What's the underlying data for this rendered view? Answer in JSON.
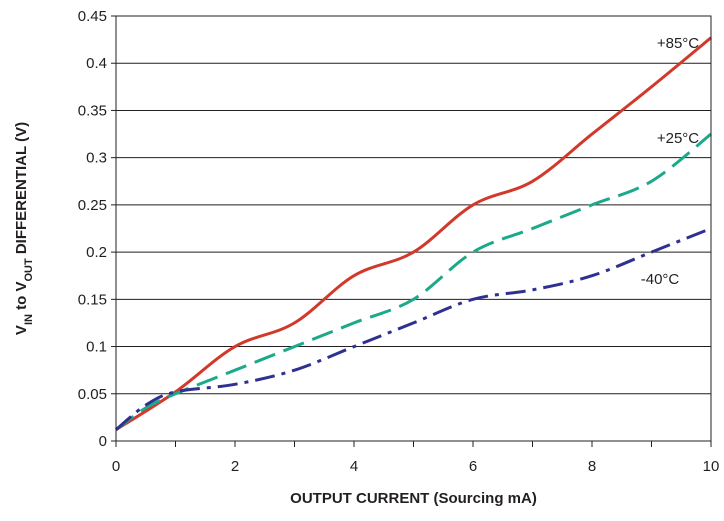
{
  "chart_data": {
    "type": "line",
    "xlabel": "OUTPUT CURRENT (Sourcing mA)",
    "ylabel": {
      "parts": [
        {
          "text": "V",
          "sub": false
        },
        {
          "text": "IN",
          "sub": true
        },
        {
          "text": " to V",
          "sub": false
        },
        {
          "text": "OUT",
          "sub": true
        },
        {
          "text": " DIFFERENTIAL (V)",
          "sub": false
        }
      ]
    },
    "xlim": [
      0,
      10
    ],
    "ylim": [
      0,
      0.45
    ],
    "xticks": [
      "0",
      "2",
      "4",
      "6",
      "8",
      "10"
    ],
    "yticks": [
      "0",
      "0.05",
      "0.1",
      "0.15",
      "0.2",
      "0.25",
      "0.3",
      "0.35",
      "0.4",
      "0.45"
    ],
    "grid": "horizontal",
    "series": [
      {
        "name": "+85°C",
        "color": "#d2392b",
        "dash": "solid",
        "x": [
          0,
          1,
          2,
          3,
          4,
          5,
          6,
          7,
          8,
          9,
          10
        ],
        "y": [
          0.012,
          0.052,
          0.1,
          0.125,
          0.175,
          0.2,
          0.25,
          0.275,
          0.325,
          0.375,
          0.427
        ]
      },
      {
        "name": "+25°C",
        "color": "#1ba98a",
        "dash": "long-dash",
        "x": [
          0,
          0.5,
          1,
          2,
          3,
          4,
          5,
          6,
          7,
          8,
          9,
          10
        ],
        "y": [
          0.012,
          0.035,
          0.05,
          0.075,
          0.1,
          0.125,
          0.15,
          0.2,
          0.225,
          0.25,
          0.275,
          0.325
        ]
      },
      {
        "name": "-40°C",
        "color": "#2e3192",
        "dash": "dash-dot",
        "x": [
          0,
          0.5,
          1,
          2,
          3,
          4,
          5,
          6,
          7,
          8,
          9,
          10
        ],
        "y": [
          0.012,
          0.038,
          0.052,
          0.06,
          0.075,
          0.1,
          0.125,
          0.15,
          0.16,
          0.175,
          0.2,
          0.225
        ]
      }
    ]
  }
}
